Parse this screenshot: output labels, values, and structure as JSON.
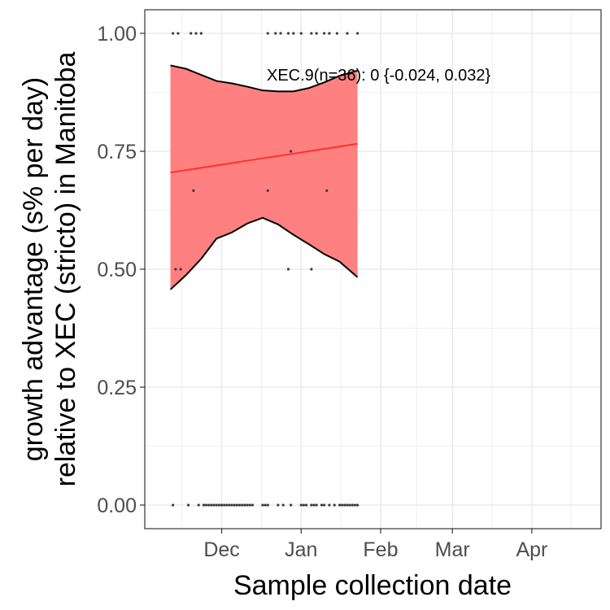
{
  "chart_data": {
    "type": "scatter",
    "title": "",
    "xlabel": "Sample collection date",
    "ylabel_lines": [
      "growth advantage (s% per day)",
      "relative to XEC (stricto) in Manitoba"
    ],
    "x_ticks": [
      {
        "date": "2024-12-01",
        "label": "Dec"
      },
      {
        "date": "2025-01-01",
        "label": "Jan"
      },
      {
        "date": "2025-02-01",
        "label": "Feb"
      },
      {
        "date": "2025-03-01",
        "label": "Mar"
      },
      {
        "date": "2025-04-01",
        "label": "Apr"
      }
    ],
    "xlim": [
      "2024-11-01",
      "2025-04-28"
    ],
    "ylim": [
      -0.05,
      1.05
    ],
    "y_ticks": [
      0.0,
      0.25,
      0.5,
      0.75,
      1.0
    ],
    "y_tick_labels": [
      "0.00",
      "0.25",
      "0.50",
      "0.75",
      "1.00"
    ],
    "grid": true,
    "annotation": "XEC.9(n=36): 0 {-0.024, 0.032}",
    "colors": {
      "ribbon": "#ff8080",
      "fit_line": "#ff3030",
      "bound": "#000000",
      "point": "#3a3a3a",
      "grid": "#ebebeb"
    },
    "points": [
      {
        "x": "2024-11-12",
        "y": 0.0
      },
      {
        "x": "2024-11-18",
        "y": 0.0
      },
      {
        "x": "2024-11-22",
        "y": 0.0
      },
      {
        "x": "2024-11-24",
        "y": 0.0
      },
      {
        "x": "2024-11-25",
        "y": 0.0
      },
      {
        "x": "2024-11-26",
        "y": 0.0
      },
      {
        "x": "2024-11-27",
        "y": 0.0
      },
      {
        "x": "2024-11-28",
        "y": 0.0
      },
      {
        "x": "2024-11-29",
        "y": 0.0
      },
      {
        "x": "2024-11-30",
        "y": 0.0
      },
      {
        "x": "2024-12-01",
        "y": 0.0
      },
      {
        "x": "2024-12-02",
        "y": 0.0
      },
      {
        "x": "2024-12-03",
        "y": 0.0
      },
      {
        "x": "2024-12-04",
        "y": 0.0
      },
      {
        "x": "2024-12-05",
        "y": 0.0
      },
      {
        "x": "2024-12-06",
        "y": 0.0
      },
      {
        "x": "2024-12-07",
        "y": 0.0
      },
      {
        "x": "2024-12-08",
        "y": 0.0
      },
      {
        "x": "2024-12-09",
        "y": 0.0
      },
      {
        "x": "2024-12-10",
        "y": 0.0
      },
      {
        "x": "2024-12-11",
        "y": 0.0
      },
      {
        "x": "2024-12-12",
        "y": 0.0
      },
      {
        "x": "2024-12-13",
        "y": 0.0
      },
      {
        "x": "2024-12-17",
        "y": 0.0
      },
      {
        "x": "2024-12-18",
        "y": 0.0
      },
      {
        "x": "2024-12-19",
        "y": 0.0
      },
      {
        "x": "2024-12-23",
        "y": 0.0
      },
      {
        "x": "2024-12-25",
        "y": 0.0
      },
      {
        "x": "2024-12-28",
        "y": 0.0
      },
      {
        "x": "2025-01-01",
        "y": 0.0
      },
      {
        "x": "2025-01-02",
        "y": 0.0
      },
      {
        "x": "2025-01-03",
        "y": 0.0
      },
      {
        "x": "2025-01-05",
        "y": 0.0
      },
      {
        "x": "2025-01-06",
        "y": 0.0
      },
      {
        "x": "2025-01-07",
        "y": 0.0
      },
      {
        "x": "2025-01-09",
        "y": 0.0
      },
      {
        "x": "2025-01-10",
        "y": 0.0
      },
      {
        "x": "2025-01-12",
        "y": 0.0
      },
      {
        "x": "2025-01-14",
        "y": 0.0
      },
      {
        "x": "2025-01-16",
        "y": 0.0
      },
      {
        "x": "2025-01-17",
        "y": 0.0
      },
      {
        "x": "2025-01-18",
        "y": 0.0
      },
      {
        "x": "2025-01-19",
        "y": 0.0
      },
      {
        "x": "2025-01-20",
        "y": 0.0
      },
      {
        "x": "2025-01-21",
        "y": 0.0
      },
      {
        "x": "2025-01-22",
        "y": 0.0
      },
      {
        "x": "2025-01-23",
        "y": 0.0
      },
      {
        "x": "2024-11-13",
        "y": 0.5
      },
      {
        "x": "2024-11-15",
        "y": 0.5
      },
      {
        "x": "2024-12-27",
        "y": 0.5
      },
      {
        "x": "2025-01-05",
        "y": 0.5
      },
      {
        "x": "2024-11-20",
        "y": 0.6667
      },
      {
        "x": "2024-12-19",
        "y": 0.6667
      },
      {
        "x": "2025-01-11",
        "y": 0.6667
      },
      {
        "x": "2024-12-28",
        "y": 0.75
      },
      {
        "x": "2024-11-12",
        "y": 1.0
      },
      {
        "x": "2024-11-14",
        "y": 1.0
      },
      {
        "x": "2024-11-19",
        "y": 1.0
      },
      {
        "x": "2024-11-21",
        "y": 1.0
      },
      {
        "x": "2024-11-23",
        "y": 1.0
      },
      {
        "x": "2024-12-19",
        "y": 1.0
      },
      {
        "x": "2024-12-22",
        "y": 1.0
      },
      {
        "x": "2024-12-24",
        "y": 1.0
      },
      {
        "x": "2024-12-27",
        "y": 1.0
      },
      {
        "x": "2024-12-29",
        "y": 1.0
      },
      {
        "x": "2025-01-01",
        "y": 1.0
      },
      {
        "x": "2025-01-05",
        "y": 1.0
      },
      {
        "x": "2025-01-07",
        "y": 1.0
      },
      {
        "x": "2025-01-10",
        "y": 1.0
      },
      {
        "x": "2025-01-12",
        "y": 1.0
      },
      {
        "x": "2025-01-15",
        "y": 1.0
      },
      {
        "x": "2025-01-19",
        "y": 1.0
      },
      {
        "x": "2025-01-23",
        "y": 1.0
      }
    ],
    "fit_line": [
      {
        "x": "2024-11-11",
        "y": 0.705
      },
      {
        "x": "2025-01-23",
        "y": 0.766
      }
    ],
    "ribbon_upper": [
      {
        "x": "2024-11-11",
        "y": 0.932
      },
      {
        "x": "2024-11-17",
        "y": 0.925
      },
      {
        "x": "2024-11-23",
        "y": 0.912
      },
      {
        "x": "2024-11-29",
        "y": 0.899
      },
      {
        "x": "2024-12-05",
        "y": 0.894
      },
      {
        "x": "2024-12-11",
        "y": 0.887
      },
      {
        "x": "2024-12-17",
        "y": 0.879
      },
      {
        "x": "2024-12-23",
        "y": 0.877
      },
      {
        "x": "2024-12-29",
        "y": 0.877
      },
      {
        "x": "2025-01-04",
        "y": 0.884
      },
      {
        "x": "2025-01-10",
        "y": 0.896
      },
      {
        "x": "2025-01-16",
        "y": 0.91
      },
      {
        "x": "2025-01-23",
        "y": 0.921
      }
    ],
    "ribbon_lower": [
      {
        "x": "2024-11-11",
        "y": 0.457
      },
      {
        "x": "2024-11-17",
        "y": 0.487
      },
      {
        "x": "2024-11-23",
        "y": 0.522
      },
      {
        "x": "2024-11-29",
        "y": 0.565
      },
      {
        "x": "2024-12-05",
        "y": 0.578
      },
      {
        "x": "2024-12-11",
        "y": 0.597
      },
      {
        "x": "2024-12-17",
        "y": 0.609
      },
      {
        "x": "2024-12-23",
        "y": 0.595
      },
      {
        "x": "2024-12-29",
        "y": 0.573
      },
      {
        "x": "2025-01-04",
        "y": 0.553
      },
      {
        "x": "2025-01-10",
        "y": 0.532
      },
      {
        "x": "2025-01-16",
        "y": 0.516
      },
      {
        "x": "2025-01-23",
        "y": 0.483
      }
    ]
  }
}
